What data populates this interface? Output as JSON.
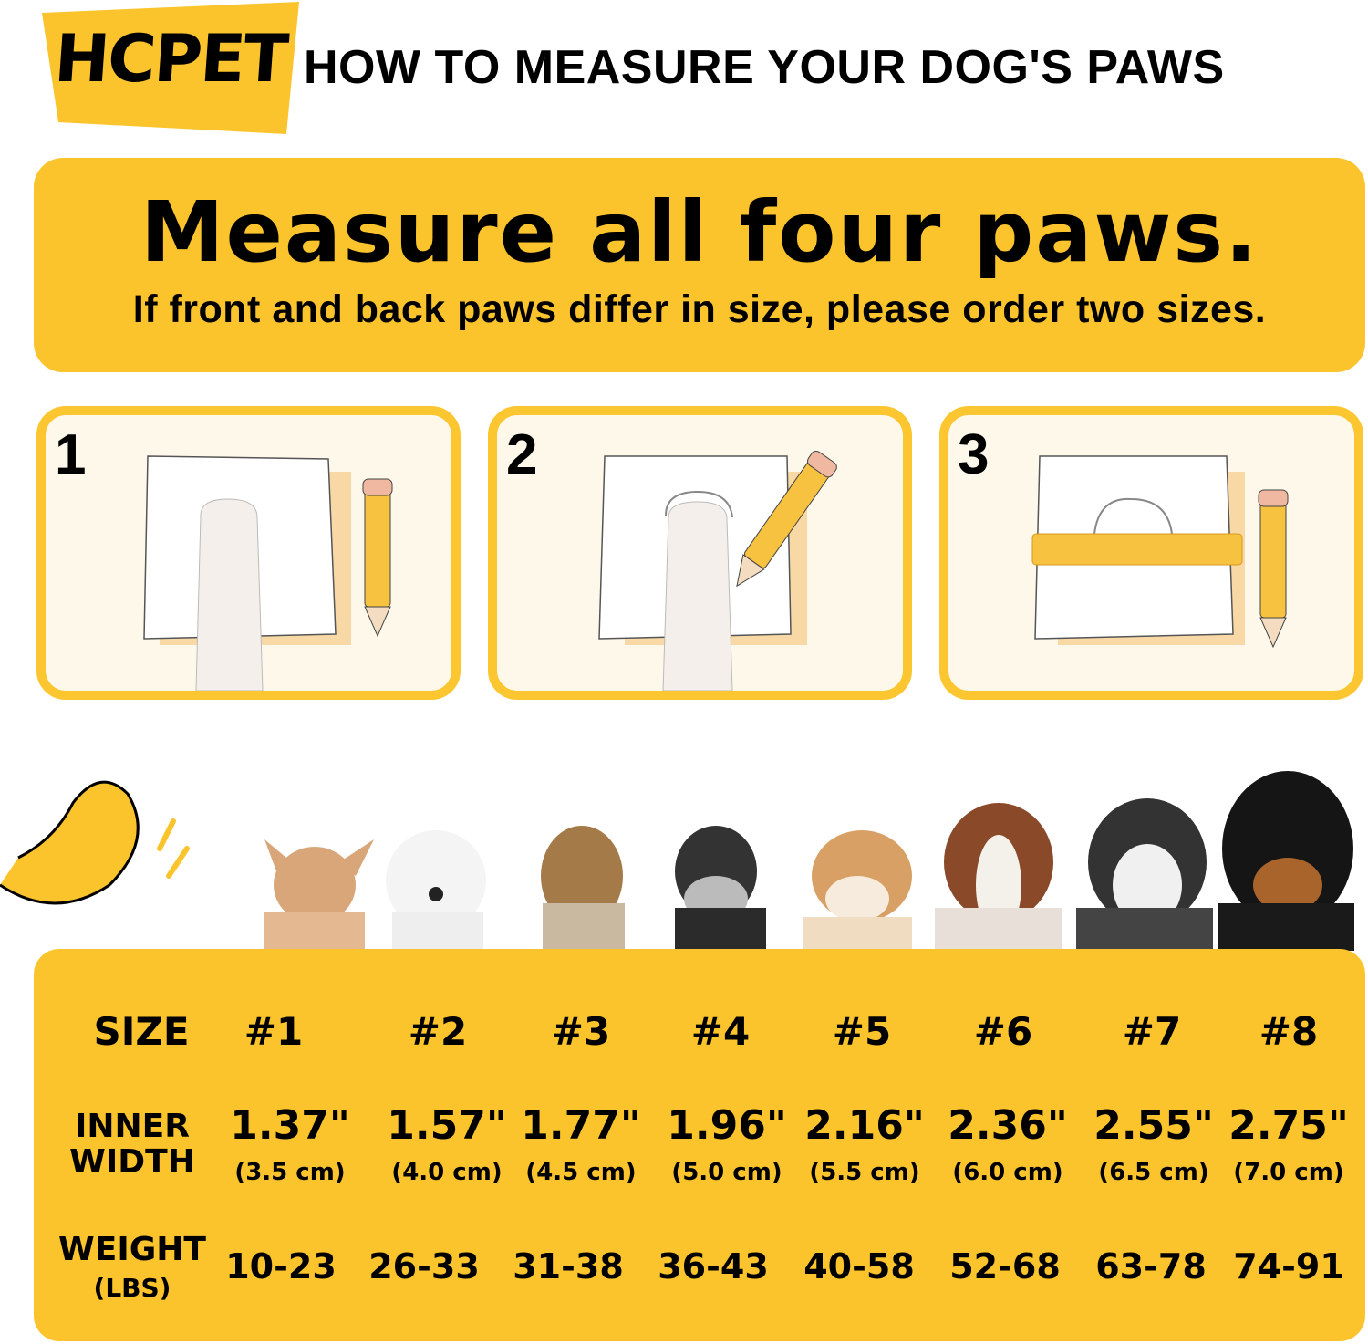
{
  "brand": {
    "logo_text": "HCPET",
    "accent_color": "#fcc42c"
  },
  "header": {
    "title": "HOW TO MEASURE YOUR DOG'S PAWS"
  },
  "banner": {
    "heading": "Measure all four paws.",
    "subheading": "If front and back paws differ in size, please order two sizes."
  },
  "steps": [
    {
      "number": "1",
      "icon": "paw-on-paper-icon"
    },
    {
      "number": "2",
      "icon": "trace-paw-pencil-icon"
    },
    {
      "number": "3",
      "icon": "ruler-measure-icon"
    }
  ],
  "dogs": [
    "chihuahua",
    "bichon",
    "yorkshire-terrier",
    "schnauzer",
    "shiba-inu",
    "australian-shepherd",
    "husky",
    "rottweiler"
  ],
  "size_table": {
    "size_label": "SIZE",
    "width_label_line1": "INNER",
    "width_label_line2": "WIDTH",
    "weight_label": "WEIGHT",
    "weight_unit": "(LBS)",
    "columns": [
      {
        "size": "#1",
        "width_in": "1.37\"",
        "width_cm": "(3.5 cm)",
        "weight": "10-23"
      },
      {
        "size": "#2",
        "width_in": "1.57\"",
        "width_cm": "(4.0 cm)",
        "weight": "26-33"
      },
      {
        "size": "#3",
        "width_in": "1.77\"",
        "width_cm": "(4.5 cm)",
        "weight": "31-38"
      },
      {
        "size": "#4",
        "width_in": "1.96\"",
        "width_cm": "(5.0 cm)",
        "weight": "36-43"
      },
      {
        "size": "#5",
        "width_in": "2.16\"",
        "width_cm": "(5.5 cm)",
        "weight": "40-58"
      },
      {
        "size": "#6",
        "width_in": "2.36\"",
        "width_cm": "(6.0 cm)",
        "weight": "52-68"
      },
      {
        "size": "#7",
        "width_in": "2.55\"",
        "width_cm": "(6.5 cm)",
        "weight": "63-78"
      },
      {
        "size": "#8",
        "width_in": "2.75\"",
        "width_cm": "(7.0 cm)",
        "weight": "74-91"
      }
    ]
  }
}
